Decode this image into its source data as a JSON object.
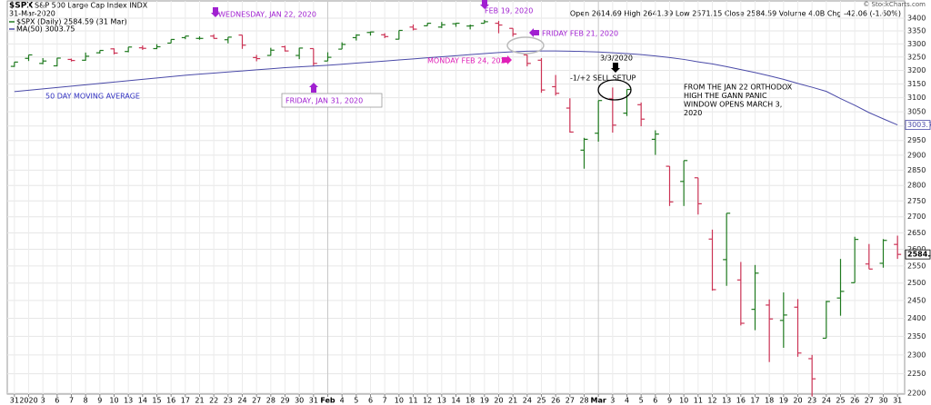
{
  "chart_data": {
    "type": "ohlc",
    "symbol": "$SPX",
    "title": "S&P 500 Large Cap Index INDX",
    "date": "31-Mar-2020",
    "quote": "Open 2614.69 High 2641.39 Low 2571.15 Close 2584.59 Volume 4.0B Chg -42.06 (-1.60%)",
    "credit": "© StockCharts.com",
    "log_scale": true,
    "grid": true,
    "ylim": [
      2200,
      3400
    ],
    "yticks": [
      2200,
      2250,
      2300,
      2350,
      2400,
      2450,
      2500,
      2550,
      2600,
      2650,
      2700,
      2750,
      2800,
      2850,
      2900,
      2950,
      3000,
      3050,
      3100,
      3150,
      3200,
      3250,
      3300,
      3350,
      3400
    ],
    "categories": [
      "31",
      "2020",
      "3",
      "6",
      "7",
      "8",
      "9",
      "10",
      "13",
      "14",
      "15",
      "16",
      "17",
      "21",
      "22",
      "23",
      "24",
      "27",
      "28",
      "29",
      "30",
      "31",
      "Feb",
      "4",
      "5",
      "6",
      "7",
      "10",
      "11",
      "12",
      "13",
      "14",
      "18",
      "19",
      "20",
      "21",
      "24",
      "25",
      "26",
      "27",
      "28",
      "Mar",
      "3",
      "4",
      "5",
      "6",
      "9",
      "10",
      "11",
      "12",
      "13",
      "16",
      "17",
      "18",
      "19",
      "20",
      "23",
      "24",
      "25",
      "26",
      "27",
      "30",
      "31"
    ],
    "series": [
      {
        "name": "$SPX (Daily) 2584.59 (31 Mar)",
        "type": "ohlc",
        "up_color": "#1f7a1f",
        "down_color": "#cc3355",
        "open": [
          3215,
          3245,
          3226,
          3217,
          3241,
          3238,
          3266,
          3281,
          3271,
          3285,
          3282,
          3303,
          3324,
          3321,
          3330,
          3316,
          3334,
          3248,
          3256,
          3289,
          3256,
          3282,
          3235,
          3280,
          3324,
          3344,
          3335,
          3318,
          3365,
          3370,
          3365,
          3378,
          3369,
          3380,
          3380,
          3360,
          3258,
          3238,
          3140,
          3063,
          2917,
          2975,
          3096,
          3045,
          3075,
          2954,
          2863,
          2813,
          2825,
          2631,
          2569,
          2509,
          2425,
          2437,
          2394,
          2431,
          2290,
          2345,
          2457,
          2501,
          2556,
          2558,
          2614.69
        ],
        "high": [
          3231,
          3258,
          3246,
          3247,
          3244,
          3267,
          3275,
          3283,
          3288,
          3294,
          3299,
          3317,
          3330,
          3329,
          3337,
          3326,
          3334,
          3258,
          3285,
          3293,
          3285,
          3282,
          3268,
          3306,
          3337,
          3348,
          3341,
          3352,
          3375,
          3381,
          3385,
          3381,
          3375,
          3393,
          3389,
          3360,
          3259,
          3246,
          3183,
          3098,
          2959,
          3090,
          3137,
          3130,
          3083,
          2985,
          2863,
          2882,
          2825,
          2660,
          2711,
          2562,
          2553,
          2453,
          2473,
          2454,
          2300,
          2449,
          2571,
          2638,
          2616,
          2631,
          2641.39
        ],
        "low": [
          3213,
          3235,
          3223,
          3215,
          3233,
          3236,
          3263,
          3260,
          3268,
          3277,
          3280,
          3303,
          3318,
          3316,
          3320,
          3302,
          3281,
          3234,
          3255,
          3271,
          3242,
          3215,
          3235,
          3280,
          3313,
          3332,
          3322,
          3317,
          3352,
          3370,
          3361,
          3366,
          3356,
          3379,
          3341,
          3328,
          3215,
          3118,
          3108,
          2977,
          2855,
          2946,
          2977,
          3035,
          2999,
          2901,
          2734,
          2734,
          2707,
          2478,
          2492,
          2380,
          2367,
          2281,
          2319,
          2295,
          2192,
          2345,
          2407,
          2501,
          2541,
          2545,
          2571.15
        ],
        "close": [
          3231,
          3258,
          3235,
          3246,
          3237,
          3253,
          3275,
          3265,
          3288,
          3283,
          3289,
          3317,
          3330,
          3321,
          3321,
          3326,
          3295,
          3244,
          3276,
          3273,
          3284,
          3226,
          3249,
          3298,
          3334,
          3346,
          3328,
          3352,
          3357,
          3380,
          3374,
          3380,
          3370,
          3386,
          3373,
          3338,
          3226,
          3128,
          3116,
          2979,
          2954,
          3090,
          3003,
          3130,
          3024,
          2972,
          2747,
          2882,
          2741,
          2481,
          2711,
          2386,
          2529,
          2398,
          2409,
          2305,
          2237,
          2447,
          2476,
          2630,
          2541,
          2627,
          2584.59
        ]
      },
      {
        "name": "MA(50) 3003.75",
        "type": "line",
        "color": "#4a4aa8",
        "values": [
          3122,
          3127,
          3132,
          3137,
          3142,
          3147,
          3152,
          3157,
          3162,
          3167,
          3172,
          3177,
          3182,
          3186,
          3190,
          3194,
          3198,
          3202,
          3206,
          3210,
          3213,
          3216,
          3219,
          3223,
          3227,
          3231,
          3235,
          3239,
          3243,
          3247,
          3251,
          3255,
          3259,
          3263,
          3267,
          3270,
          3272,
          3273,
          3273,
          3272,
          3271,
          3269,
          3266,
          3263,
          3259,
          3254,
          3248,
          3241,
          3232,
          3224,
          3214,
          3203,
          3192,
          3180,
          3167,
          3152,
          3138,
          3123,
          3097,
          3073,
          3047,
          3025,
          3003.75
        ]
      }
    ],
    "annotations": [
      {
        "lines": [
          "WEDNESDAY, JAN 22, 2020"
        ],
        "color": "#a020d0"
      },
      {
        "lines": [
          "FEB 19, 2020"
        ],
        "color": "#a020d0"
      },
      {
        "lines": [
          "FRIDAY FEB 21, 2020"
        ],
        "color": "#a020d0"
      },
      {
        "lines": [
          "MONDAY FEB 24, 2020"
        ],
        "color": "#e020b8"
      },
      {
        "lines": [
          "3/3/2020"
        ],
        "color": "#000000"
      },
      {
        "lines": [
          "-1/+2 SELL SETUP"
        ],
        "color": "#000000"
      },
      {
        "lines": [
          "FRIDAY, JAN 31, 2020"
        ],
        "color": "#a020d0"
      },
      {
        "lines": [
          "50 DAY MOVING AVERAGE"
        ],
        "color": "#3030c0"
      },
      {
        "lines": [
          "FROM THE JAN 22 ORTHODOX",
          "HIGH THE GANN PANIC",
          "WINDOW OPENS MARCH 3,",
          "2020"
        ],
        "color": "#000000"
      }
    ]
  }
}
